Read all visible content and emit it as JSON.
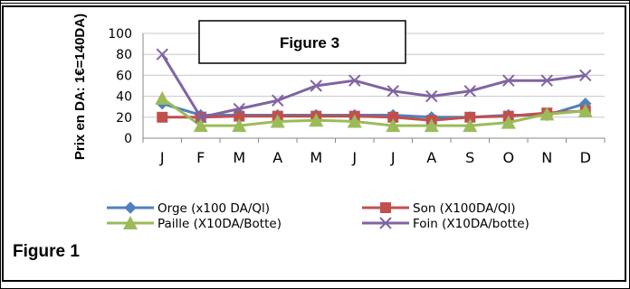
{
  "caption": "Figure 1",
  "chart_data": {
    "type": "line",
    "title": "Figure 3",
    "ylabel": "Prix en DA: 1€=140DA)",
    "xlabel": "",
    "categories": [
      "J",
      "F",
      "M",
      "A",
      "M",
      "J",
      "J",
      "A",
      "S",
      "O",
      "N",
      "D"
    ],
    "yticks": [
      "0",
      "20",
      "40",
      "60",
      "80",
      "100"
    ],
    "ylim": [
      0,
      100
    ],
    "grid": true,
    "legend_position": "bottom",
    "series": [
      {
        "name": "Orge (x100 DA/Ql)",
        "color": "#4F81BD",
        "marker": "diamond",
        "values": [
          33,
          22,
          22,
          22,
          22,
          22,
          22,
          20,
          20,
          22,
          22,
          33
        ]
      },
      {
        "name": "Son (X100DA/Ql)",
        "color": "#C0504D",
        "marker": "square",
        "values": [
          20,
          20,
          21,
          21,
          21,
          21,
          20,
          17,
          20,
          21,
          24,
          26
        ]
      },
      {
        "name": "Paille (X10DA/Botte)",
        "color": "#9BBB59",
        "marker": "triangle",
        "values": [
          38,
          12,
          12,
          16,
          17,
          16,
          12,
          12,
          12,
          15,
          23,
          26
        ]
      },
      {
        "name": "Foin (X10DA/botte)",
        "color": "#8064A2",
        "marker": "x",
        "values": [
          80,
          20,
          28,
          36,
          50,
          55,
          45,
          40,
          45,
          55,
          55,
          60
        ]
      }
    ]
  }
}
